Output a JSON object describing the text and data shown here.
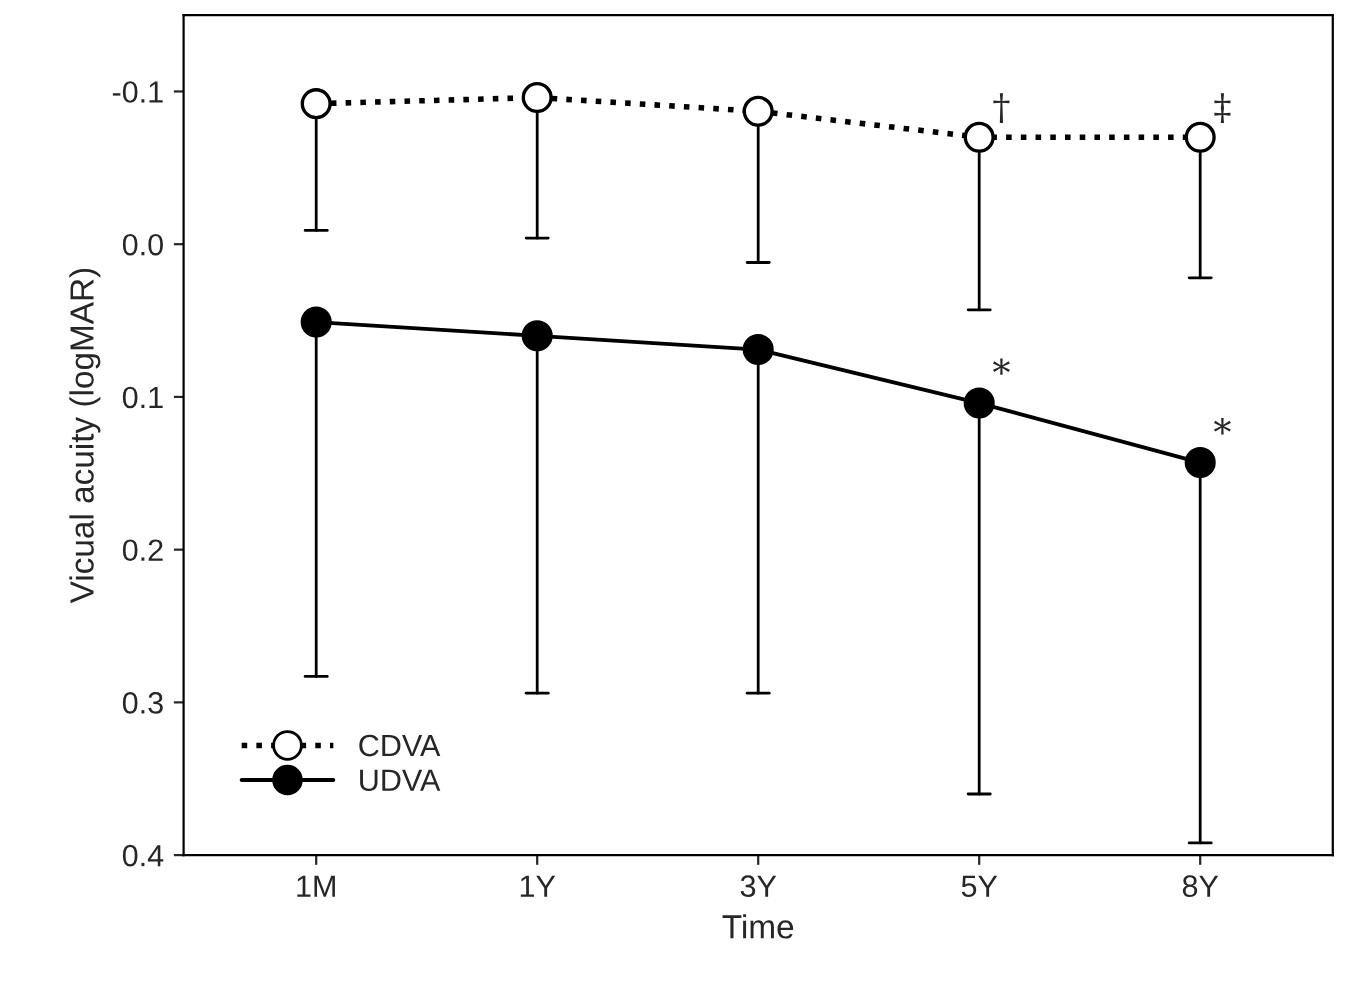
{
  "chart_data": {
    "type": "line",
    "xlabel": "Time",
    "ylabel": "Vicual acuity (logMAR)",
    "categories": [
      "1M",
      "1Y",
      "3Y",
      "5Y",
      "8Y"
    ],
    "series": [
      {
        "name": "CDVA",
        "color": "#000000",
        "line_style": "dotted",
        "values": [
          -0.092,
          -0.096,
          -0.087,
          -0.07,
          -0.07
        ],
        "errors": [
          [
            -0.092,
            -0.009
          ],
          [
            -0.096,
            -0.004
          ],
          [
            -0.087,
            0.012
          ],
          [
            -0.07,
            0.043
          ],
          [
            -0.07,
            0.022
          ]
        ]
      },
      {
        "name": "UDVA",
        "color": "#000000",
        "line_style": "solid",
        "values": [
          0.051,
          0.06,
          0.069,
          0.104,
          0.143
        ],
        "errors": [
          [
            0.051,
            0.283
          ],
          [
            0.06,
            0.294
          ],
          [
            0.069,
            0.294
          ],
          [
            0.104,
            0.36
          ],
          [
            0.143,
            0.392
          ]
        ]
      }
    ],
    "ylim": [
      0.4,
      -0.15
    ],
    "yticks": [
      -0.1,
      {
        "value": 0.0,
        "label": "0.0"
      },
      0.1,
      0.2,
      0.3,
      0.4
    ],
    "marker": "circle",
    "grid": false,
    "legend": "bottom left",
    "annotations": [
      {
        "text": "†",
        "x": "5Y",
        "y": -0.07
      },
      {
        "text": "‡",
        "x": "8Y",
        "y": -0.07
      },
      {
        "text": "*",
        "x": "5Y",
        "y": 0.104
      },
      {
        "text": "*",
        "x": "8Y",
        "y": 0.143
      }
    ]
  }
}
